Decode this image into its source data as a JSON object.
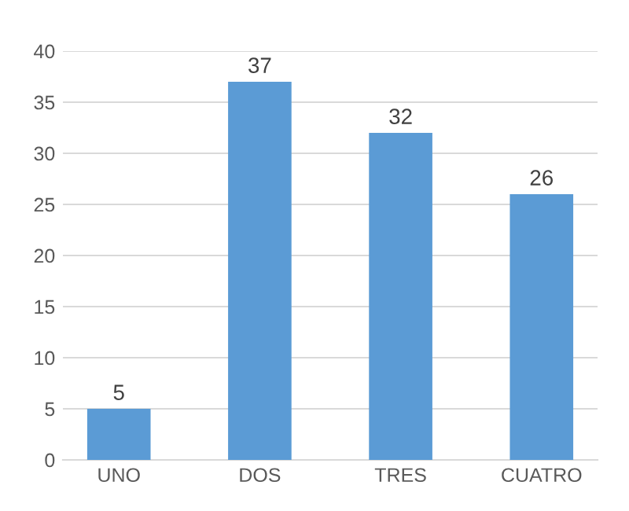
{
  "chart_data": {
    "type": "bar",
    "categories": [
      "UNO",
      "DOS",
      "TRES",
      "CUATRO"
    ],
    "values": [
      5,
      37,
      32,
      26
    ],
    "color": "#5b9bd5",
    "ylim": [
      0,
      40
    ],
    "yticks": [
      0,
      5,
      10,
      15,
      20,
      25,
      30,
      35,
      40
    ],
    "grid": "y",
    "legend": false,
    "data_labels": true
  }
}
